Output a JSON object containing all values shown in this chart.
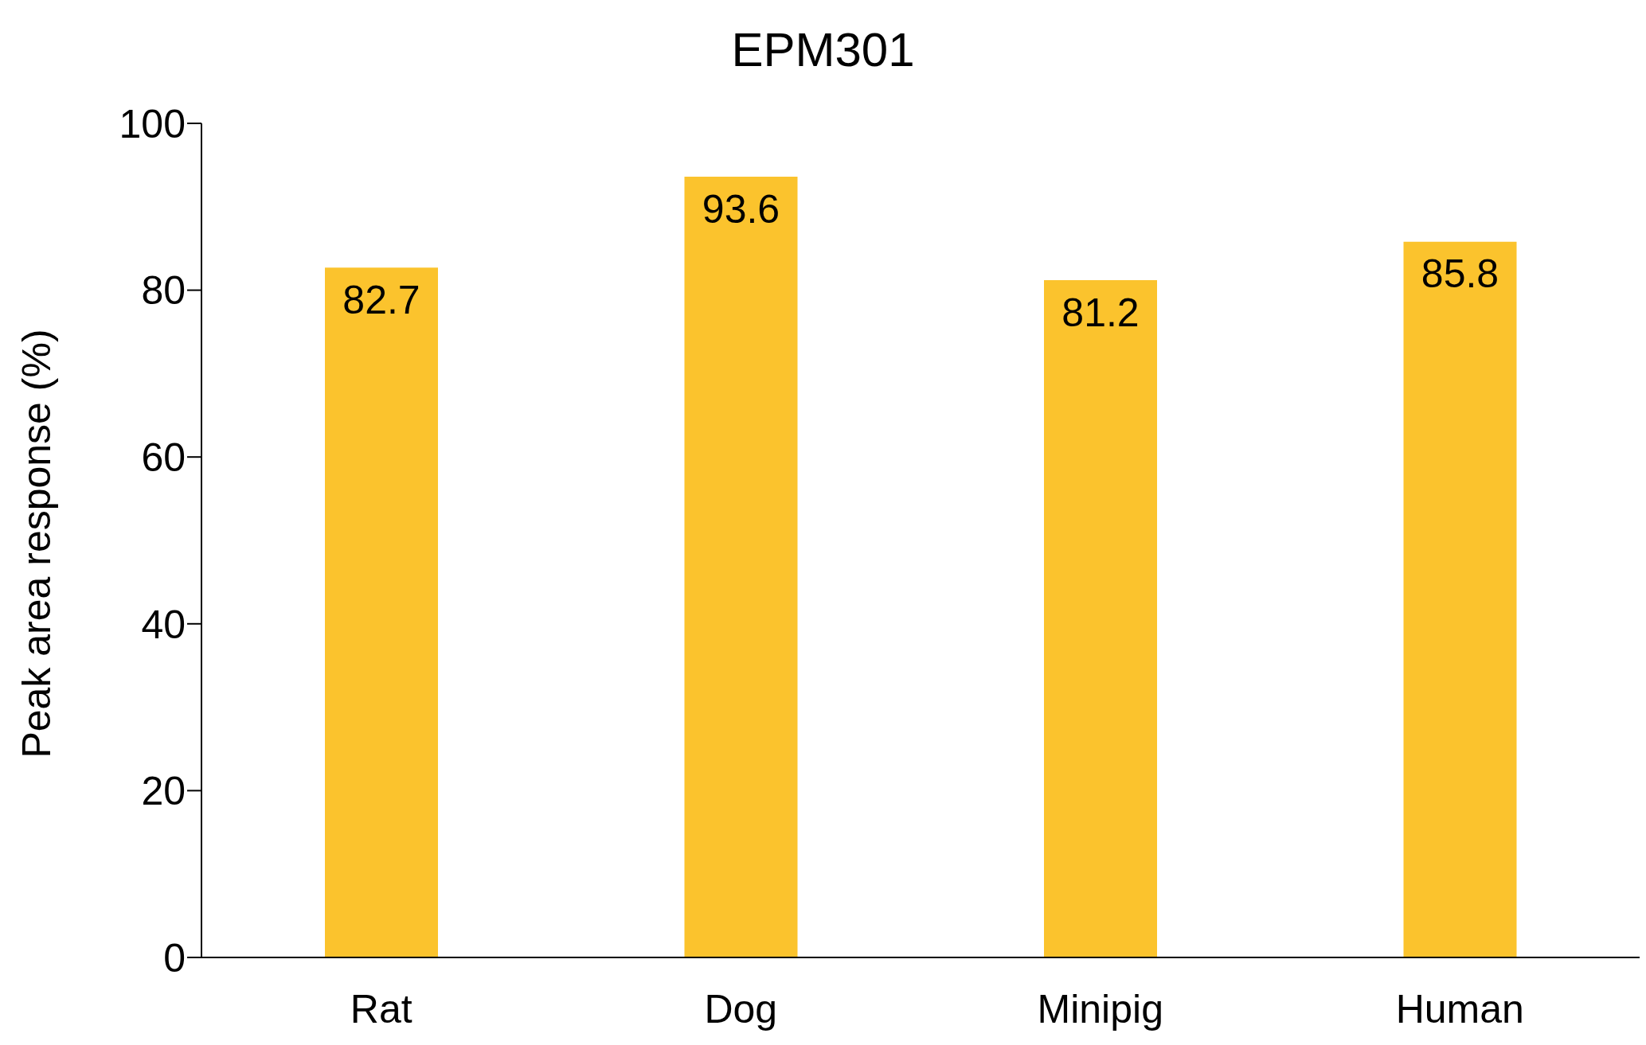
{
  "chart_data": {
    "type": "bar",
    "title": "EPM301",
    "ylabel": "Peak area response (%)",
    "categories": [
      "Rat",
      "Dog",
      "Minipig",
      "Human"
    ],
    "values": [
      82.7,
      93.6,
      81.2,
      85.8
    ],
    "color": "#fbc32d",
    "ylim": [
      0,
      100
    ],
    "yticks": [
      0,
      20,
      40,
      60,
      80,
      100
    ],
    "data_labels": true
  }
}
